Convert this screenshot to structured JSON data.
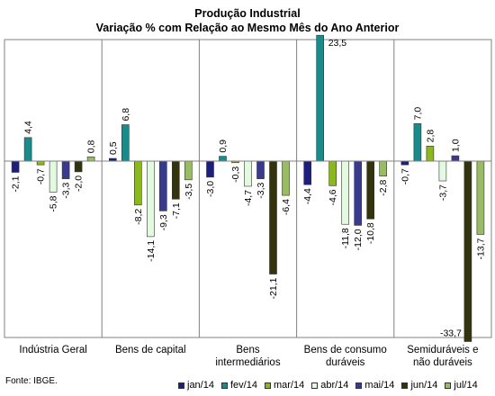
{
  "chart_data": {
    "type": "bar",
    "title": "Produção Industrial",
    "subtitle": "Variação % com Relação ao Mesmo Mês do Ano Anterior",
    "categories": [
      "Indústria Geral",
      "Bens de capital",
      "Bens intermediários",
      "Bens de consumo duráveis",
      "Semiduráveis e não duráveis"
    ],
    "series": [
      {
        "name": "jan/14",
        "color": "#1f1f7a",
        "values": [
          -2.1,
          0.5,
          -3.0,
          -4.4,
          -0.7
        ]
      },
      {
        "name": "fev/14",
        "color": "#1a8a8a",
        "values": [
          4.4,
          6.8,
          0.9,
          23.5,
          7.0
        ]
      },
      {
        "name": "mar/14",
        "color": "#8cb81f",
        "values": [
          -0.7,
          -8.2,
          -0.3,
          -4.6,
          2.8
        ]
      },
      {
        "name": "abr/14",
        "color": "#e4fae0",
        "values": [
          -5.8,
          -14.1,
          -4.7,
          -11.8,
          -3.7
        ]
      },
      {
        "name": "mai/14",
        "color": "#3a3a8c",
        "values": [
          -3.3,
          -9.3,
          -3.3,
          -12.0,
          1.0
        ]
      },
      {
        "name": "jun/14",
        "color": "#33330f",
        "values": [
          -2.0,
          -7.1,
          -21.1,
          -10.8,
          -33.7
        ]
      },
      {
        "name": "jul/14",
        "color": "#99bb66",
        "values": [
          0.8,
          -3.5,
          -6.4,
          -2.8,
          -13.7
        ]
      }
    ],
    "ylim": [
      -37,
      26
    ],
    "grid": false,
    "legend": "bottom"
  },
  "source": "Fonte: IBGE.",
  "category_lines": [
    [
      "Indústria Geral"
    ],
    [
      "Bens de capital"
    ],
    [
      "Bens",
      "intermediários"
    ],
    [
      "Bens de consumo",
      "duráveis"
    ],
    [
      "Semiduráveis e",
      "não duráveis"
    ]
  ]
}
